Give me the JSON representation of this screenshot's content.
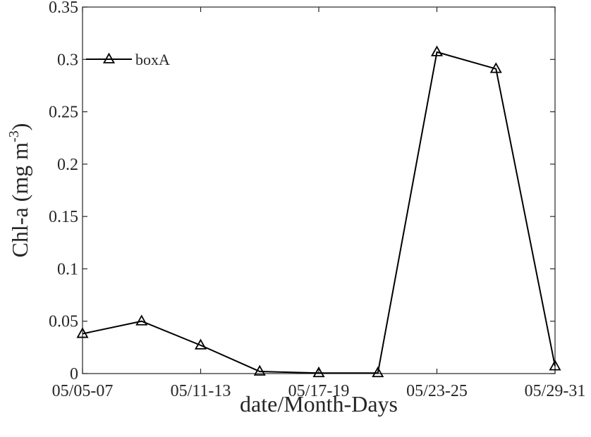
{
  "chart_data": {
    "type": "line",
    "xlabel": "date/Month-Days",
    "ylabel": "Chl-a (mg m",
    "ylabel_superscript": "-3",
    "ylabel_suffix": ")",
    "x": [
      1,
      2,
      3,
      4,
      5,
      6,
      7,
      8,
      9
    ],
    "xlim": [
      1,
      9
    ],
    "x_ticks": [
      1,
      3,
      5,
      7,
      9
    ],
    "x_tick_labels": [
      "05/05-07",
      "05/11-13",
      "05/17-19",
      "05/23-25",
      "05/29-31"
    ],
    "ylim": [
      0,
      0.35
    ],
    "y_ticks": [
      0,
      0.05,
      0.1,
      0.15,
      0.2,
      0.25,
      0.3,
      0.35
    ],
    "y_tick_labels": [
      "0",
      "0.05",
      "0.1",
      "0.15",
      "0.2",
      "0.25",
      "0.3",
      "0.35"
    ],
    "grid": false,
    "legend_position": "top-left",
    "series": [
      {
        "name": "boxA",
        "marker": "triangle",
        "color": "#000000",
        "values": [
          0.038,
          0.05,
          0.027,
          0.002,
          0.0005,
          0.0005,
          0.307,
          0.291,
          0.007
        ]
      }
    ]
  }
}
